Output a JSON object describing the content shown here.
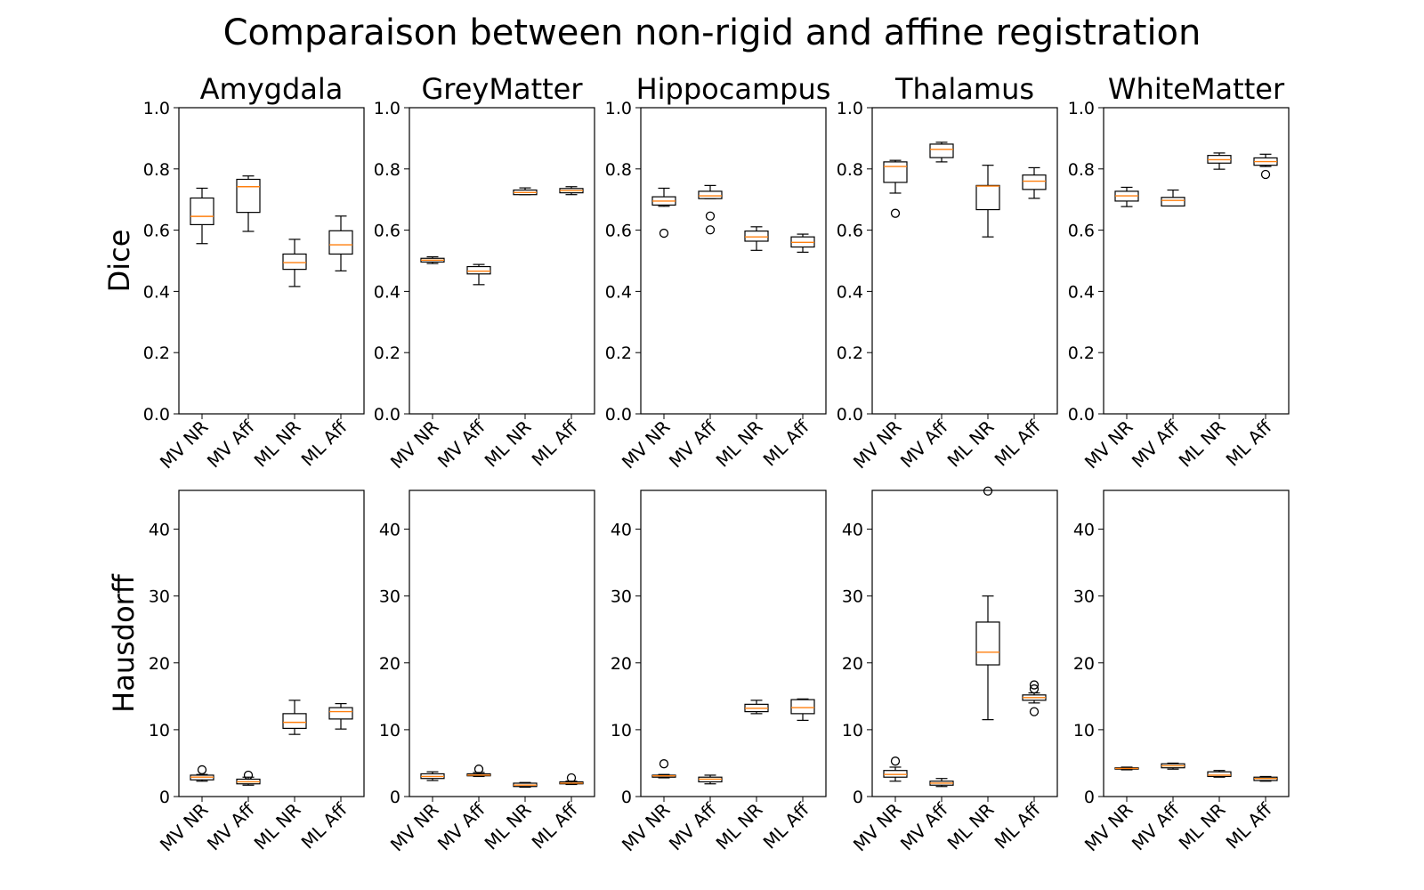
{
  "title": "Comparaison between non-rigid and affine registration",
  "colors": {
    "box": "#000000",
    "median": "#ff7f0e",
    "background": "#ffffff"
  },
  "chart_data": [
    {
      "metric": "Dice",
      "type": "box",
      "regions": [
        "Amygdala",
        "GreyMatter",
        "Hippocampus",
        "Thalamus",
        "WhiteMatter"
      ],
      "categories": [
        "MV NR",
        "MV Aff",
        "ML NR",
        "ML Aff"
      ],
      "ylim": [
        0,
        1.0
      ],
      "yticks": [
        0.0,
        0.2,
        0.4,
        0.6,
        0.8,
        1.0
      ],
      "ytick_labels": [
        "0.0",
        "0.2",
        "0.4",
        "0.6",
        "0.8",
        "1.0"
      ],
      "series": [
        {
          "region": "Amygdala",
          "boxes": [
            {
              "whislo": 0.556,
              "q1": 0.618,
              "med": 0.645,
              "q3": 0.705,
              "whishi": 0.737,
              "fliers": []
            },
            {
              "whislo": 0.596,
              "q1": 0.658,
              "med": 0.742,
              "q3": 0.766,
              "whishi": 0.777,
              "fliers": []
            },
            {
              "whislo": 0.416,
              "q1": 0.472,
              "med": 0.494,
              "q3": 0.522,
              "whishi": 0.57,
              "fliers": []
            },
            {
              "whislo": 0.467,
              "q1": 0.522,
              "med": 0.552,
              "q3": 0.598,
              "whishi": 0.646,
              "fliers": []
            }
          ]
        },
        {
          "region": "GreyMatter",
          "boxes": [
            {
              "whislo": 0.491,
              "q1": 0.496,
              "med": 0.502,
              "q3": 0.508,
              "whishi": 0.513,
              "fliers": []
            },
            {
              "whislo": 0.422,
              "q1": 0.457,
              "med": 0.466,
              "q3": 0.481,
              "whishi": 0.488,
              "fliers": []
            },
            {
              "whislo": 0.716,
              "q1": 0.716,
              "med": 0.723,
              "q3": 0.731,
              "whishi": 0.738,
              "fliers": []
            },
            {
              "whislo": 0.716,
              "q1": 0.722,
              "med": 0.729,
              "q3": 0.736,
              "whishi": 0.742,
              "fliers": []
            }
          ]
        },
        {
          "region": "Hippocampus",
          "boxes": [
            {
              "whislo": 0.678,
              "q1": 0.682,
              "med": 0.695,
              "q3": 0.709,
              "whishi": 0.737,
              "fliers": [
                0.59
              ]
            },
            {
              "whislo": 0.703,
              "q1": 0.703,
              "med": 0.712,
              "q3": 0.727,
              "whishi": 0.746,
              "fliers": [
                0.646,
                0.601
              ]
            },
            {
              "whislo": 0.534,
              "q1": 0.564,
              "med": 0.578,
              "q3": 0.597,
              "whishi": 0.611,
              "fliers": []
            },
            {
              "whislo": 0.528,
              "q1": 0.545,
              "med": 0.56,
              "q3": 0.578,
              "whishi": 0.587,
              "fliers": []
            }
          ]
        },
        {
          "region": "Thalamus",
          "boxes": [
            {
              "whislo": 0.721,
              "q1": 0.756,
              "med": 0.808,
              "q3": 0.823,
              "whishi": 0.828,
              "fliers": [
                0.655
              ]
            },
            {
              "whislo": 0.823,
              "q1": 0.837,
              "med": 0.864,
              "q3": 0.881,
              "whishi": 0.887,
              "fliers": []
            },
            {
              "whislo": 0.578,
              "q1": 0.667,
              "med": 0.744,
              "q3": 0.746,
              "whishi": 0.812,
              "fliers": []
            },
            {
              "whislo": 0.704,
              "q1": 0.733,
              "med": 0.76,
              "q3": 0.78,
              "whishi": 0.804,
              "fliers": []
            }
          ]
        },
        {
          "region": "WhiteMatter",
          "boxes": [
            {
              "whislo": 0.677,
              "q1": 0.695,
              "med": 0.712,
              "q3": 0.727,
              "whishi": 0.74,
              "fliers": []
            },
            {
              "whislo": 0.679,
              "q1": 0.679,
              "med": 0.697,
              "q3": 0.707,
              "whishi": 0.731,
              "fliers": []
            },
            {
              "whislo": 0.799,
              "q1": 0.819,
              "med": 0.83,
              "q3": 0.844,
              "whishi": 0.852,
              "fliers": []
            },
            {
              "whislo": 0.808,
              "q1": 0.812,
              "med": 0.824,
              "q3": 0.836,
              "whishi": 0.848,
              "fliers": [
                0.782
              ]
            }
          ]
        }
      ]
    },
    {
      "metric": "Hausdorff",
      "type": "box",
      "regions": [
        "Amygdala",
        "GreyMatter",
        "Hippocampus",
        "Thalamus",
        "WhiteMatter"
      ],
      "categories": [
        "MV NR",
        "MV Aff",
        "ML NR",
        "ML Aff"
      ],
      "ylim": [
        0,
        45.8
      ],
      "yticks": [
        0,
        10,
        20,
        30,
        40
      ],
      "ytick_labels": [
        "0",
        "10",
        "20",
        "30",
        "40"
      ],
      "series": [
        {
          "region": "Amygdala",
          "boxes": [
            {
              "whislo": 2.3,
              "q1": 2.5,
              "med": 2.9,
              "q3": 3.2,
              "whishi": 3.3,
              "fliers": [
                4.0
              ]
            },
            {
              "whislo": 1.7,
              "q1": 1.9,
              "med": 2.2,
              "q3": 2.6,
              "whishi": 2.9,
              "fliers": [
                3.2
              ]
            },
            {
              "whislo": 9.3,
              "q1": 10.2,
              "med": 11.1,
              "q3": 12.4,
              "whishi": 14.4,
              "fliers": []
            },
            {
              "whislo": 10.1,
              "q1": 11.6,
              "med": 12.7,
              "q3": 13.3,
              "whishi": 13.9,
              "fliers": []
            }
          ]
        },
        {
          "region": "GreyMatter",
          "boxes": [
            {
              "whislo": 2.4,
              "q1": 2.7,
              "med": 3.0,
              "q3": 3.4,
              "whishi": 3.7,
              "fliers": []
            },
            {
              "whislo": 3.0,
              "q1": 3.1,
              "med": 3.2,
              "q3": 3.4,
              "whishi": 3.6,
              "fliers": [
                4.1
              ]
            },
            {
              "whislo": 1.4,
              "q1": 1.5,
              "med": 1.7,
              "q3": 2.0,
              "whishi": 2.1,
              "fliers": []
            },
            {
              "whislo": 1.8,
              "q1": 1.9,
              "med": 2.0,
              "q3": 2.2,
              "whishi": 2.3,
              "fliers": [
                2.8
              ]
            }
          ]
        },
        {
          "region": "Hippocampus",
          "boxes": [
            {
              "whislo": 2.8,
              "q1": 2.9,
              "med": 3.1,
              "q3": 3.2,
              "whishi": 3.3,
              "fliers": [
                4.9
              ]
            },
            {
              "whislo": 1.9,
              "q1": 2.2,
              "med": 2.6,
              "q3": 2.9,
              "whishi": 3.2,
              "fliers": []
            },
            {
              "whislo": 12.4,
              "q1": 12.7,
              "med": 13.2,
              "q3": 13.8,
              "whishi": 14.4,
              "fliers": []
            },
            {
              "whislo": 11.4,
              "q1": 12.4,
              "med": 13.3,
              "q3": 14.5,
              "whishi": 14.6,
              "fliers": []
            }
          ]
        },
        {
          "region": "Thalamus",
          "boxes": [
            {
              "whislo": 2.3,
              "q1": 2.9,
              "med": 3.3,
              "q3": 3.9,
              "whishi": 4.4,
              "fliers": [
                5.3
              ]
            },
            {
              "whislo": 1.5,
              "q1": 1.7,
              "med": 2.0,
              "q3": 2.3,
              "whishi": 2.7,
              "fliers": []
            },
            {
              "whislo": 11.5,
              "q1": 19.7,
              "med": 21.6,
              "q3": 26.1,
              "whishi": 30.0,
              "fliers": [
                45.7
              ]
            },
            {
              "whislo": 14.0,
              "q1": 14.4,
              "med": 14.8,
              "q3": 15.2,
              "whishi": 15.5,
              "fliers": [
                16.7,
                16.1,
                12.7
              ]
            }
          ]
        },
        {
          "region": "WhiteMatter",
          "boxes": [
            {
              "whislo": 4.0,
              "q1": 4.1,
              "med": 4.2,
              "q3": 4.3,
              "whishi": 4.4,
              "fliers": []
            },
            {
              "whislo": 4.1,
              "q1": 4.3,
              "med": 4.6,
              "q3": 4.9,
              "whishi": 5.0,
              "fliers": []
            },
            {
              "whislo": 2.9,
              "q1": 3.0,
              "med": 3.2,
              "q3": 3.7,
              "whishi": 3.9,
              "fliers": []
            },
            {
              "whislo": 2.3,
              "q1": 2.4,
              "med": 2.7,
              "q3": 2.9,
              "whishi": 3.0,
              "fliers": []
            }
          ]
        }
      ]
    }
  ]
}
